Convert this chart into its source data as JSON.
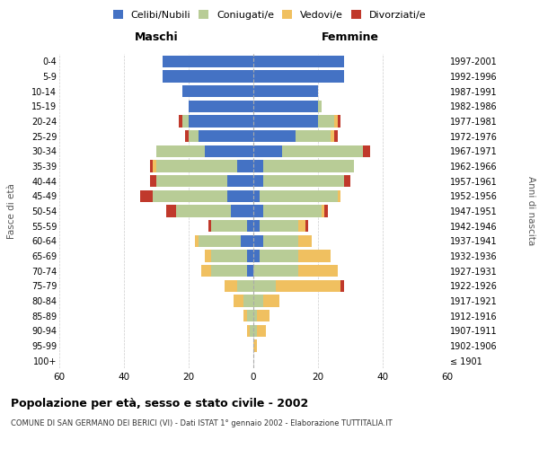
{
  "age_groups": [
    "100+",
    "95-99",
    "90-94",
    "85-89",
    "80-84",
    "75-79",
    "70-74",
    "65-69",
    "60-64",
    "55-59",
    "50-54",
    "45-49",
    "40-44",
    "35-39",
    "30-34",
    "25-29",
    "20-24",
    "15-19",
    "10-14",
    "5-9",
    "0-4"
  ],
  "birth_years": [
    "≤ 1901",
    "1902-1906",
    "1907-1911",
    "1912-1916",
    "1917-1921",
    "1922-1926",
    "1927-1931",
    "1932-1936",
    "1937-1941",
    "1942-1946",
    "1947-1951",
    "1952-1956",
    "1957-1961",
    "1962-1966",
    "1967-1971",
    "1972-1976",
    "1977-1981",
    "1982-1986",
    "1987-1991",
    "1992-1996",
    "1997-2001"
  ],
  "males": {
    "celibi": [
      0,
      0,
      0,
      0,
      0,
      0,
      2,
      2,
      4,
      2,
      7,
      8,
      8,
      5,
      15,
      17,
      20,
      20,
      22,
      28,
      28
    ],
    "coniugati": [
      0,
      0,
      1,
      2,
      3,
      5,
      11,
      11,
      13,
      11,
      17,
      23,
      22,
      25,
      15,
      3,
      2,
      0,
      0,
      0,
      0
    ],
    "vedovi": [
      0,
      0,
      1,
      1,
      3,
      4,
      3,
      2,
      1,
      0,
      0,
      0,
      0,
      1,
      0,
      0,
      0,
      0,
      0,
      0,
      0
    ],
    "divorziati": [
      0,
      0,
      0,
      0,
      0,
      0,
      0,
      0,
      0,
      1,
      3,
      4,
      2,
      1,
      0,
      1,
      1,
      0,
      0,
      0,
      0
    ]
  },
  "females": {
    "nubili": [
      0,
      0,
      0,
      0,
      0,
      0,
      0,
      2,
      3,
      2,
      3,
      2,
      3,
      3,
      9,
      13,
      20,
      20,
      20,
      28,
      28
    ],
    "coniugate": [
      0,
      0,
      1,
      1,
      3,
      7,
      14,
      12,
      11,
      12,
      18,
      24,
      25,
      28,
      25,
      11,
      5,
      1,
      0,
      0,
      0
    ],
    "vedove": [
      0,
      1,
      3,
      4,
      5,
      20,
      12,
      10,
      4,
      2,
      1,
      1,
      0,
      0,
      0,
      1,
      1,
      0,
      0,
      0,
      0
    ],
    "divorziate": [
      0,
      0,
      0,
      0,
      0,
      1,
      0,
      0,
      0,
      1,
      1,
      0,
      2,
      0,
      2,
      1,
      1,
      0,
      0,
      0,
      0
    ]
  },
  "colors": {
    "celibi_nubili": "#4472C4",
    "coniugati": "#B8CC96",
    "vedovi": "#F0C060",
    "divorziati": "#C0392B"
  },
  "title": "Popolazione per età, sesso e stato civile - 2002",
  "subtitle": "COMUNE DI SAN GERMANO DEI BERICI (VI) - Dati ISTAT 1° gennaio 2002 - Elaborazione TUTTITALIA.IT",
  "xlabel_left": "Maschi",
  "xlabel_right": "Femmine",
  "ylabel_left": "Fasce di età",
  "ylabel_right": "Anni di nascita",
  "xlim": 60,
  "background_color": "#ffffff",
  "grid_color": "#cccccc",
  "bar_height": 0.8
}
